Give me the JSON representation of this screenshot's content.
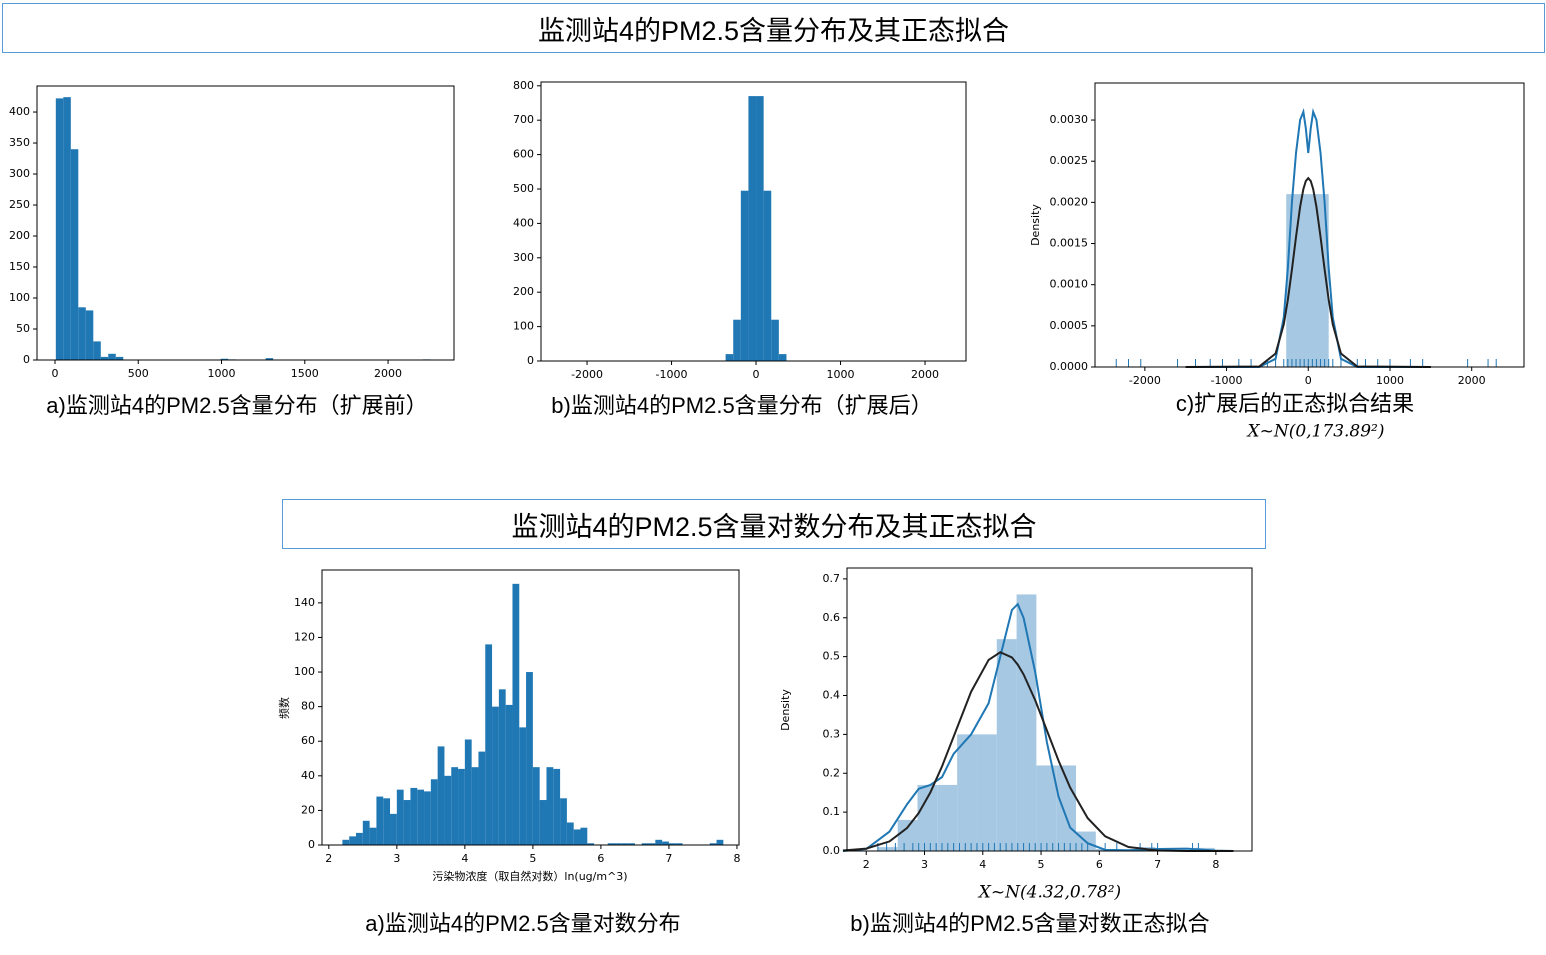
{
  "headings": [
    "监测站4的PM2.5含量分布及其正态拟合",
    "监测站4的PM2.5含量对数分布及其正态拟合"
  ],
  "chart_data": [
    {
      "type": "histogram",
      "caption": "a)监测站4的PM2.5含量分布（扩展前）",
      "color": "#1f77b4",
      "bins": [
        5,
        50,
        95,
        140,
        185,
        230,
        275,
        320,
        365,
        410,
        455,
        500,
        545,
        590,
        635,
        680,
        725,
        770,
        815,
        860,
        905,
        950,
        995,
        1040,
        1085,
        1130,
        1175,
        1220,
        1265,
        1310,
        1355,
        1400,
        1445,
        1490,
        1535,
        1580,
        1625,
        1670,
        1715,
        1760,
        1805,
        1850,
        1895,
        1940,
        1985,
        2030,
        2075,
        2120,
        2165,
        2210,
        2255
      ],
      "counts": [
        422,
        424,
        340,
        85,
        80,
        30,
        5,
        10,
        5,
        0,
        0,
        0,
        0,
        0,
        0,
        0,
        0,
        0,
        0,
        0,
        0,
        0,
        2,
        1,
        0,
        0,
        0,
        0,
        3,
        0,
        0,
        0,
        0,
        0,
        0,
        0,
        0,
        0,
        0,
        0,
        0,
        0,
        0,
        0,
        0,
        0,
        0,
        0,
        0,
        1
      ],
      "xlim": [
        -108,
        2396
      ],
      "xticks": [
        0,
        500,
        1000,
        1500,
        2000
      ],
      "ylim": [
        0,
        442
      ],
      "yticks": [
        0,
        50,
        100,
        150,
        200,
        250,
        300,
        350,
        400
      ]
    },
    {
      "type": "histogram",
      "caption": "b)监测站4的PM2.5含量分布（扩展后）",
      "color": "#1f77b4",
      "bins": [
        -360,
        -270,
        -180,
        -90,
        0,
        90,
        180,
        270,
        360
      ],
      "counts": [
        20,
        120,
        495,
        770,
        770,
        495,
        120,
        20
      ],
      "xlim": [
        -2545,
        2485
      ],
      "xticks": [
        -2000,
        -1000,
        0,
        1000,
        2000
      ],
      "ylim": [
        0,
        811
      ],
      "yticks": [
        0,
        100,
        200,
        300,
        400,
        500,
        600,
        700,
        800
      ]
    },
    {
      "type": "density",
      "caption": "c)扩展后的正态拟合结果",
      "annotation": "X~N(0,173.89²)",
      "ylabel": "Density",
      "color": "#a6c8e3",
      "bins": [
        -270,
        250
      ],
      "counts": [
        0.0021
      ],
      "curves": [
        {
          "color": "#1f77b4",
          "x": [
            -1500,
            -600,
            -400,
            -300,
            -250,
            -200,
            -150,
            -100,
            -60,
            -30,
            0,
            30,
            60,
            100,
            150,
            200,
            250,
            300,
            400,
            600,
            1500
          ],
          "values": [
            0,
            0,
            0.0001,
            0.0006,
            0.0012,
            0.002,
            0.0026,
            0.003,
            0.0031,
            0.0029,
            0.0026,
            0.0029,
            0.0031,
            0.003,
            0.0026,
            0.002,
            0.0012,
            0.0006,
            0.0001,
            0,
            0
          ]
        },
        {
          "color": "#222222",
          "x": [
            -1500,
            -600,
            -400,
            -300,
            -250,
            -200,
            -150,
            -100,
            -60,
            -30,
            0,
            30,
            60,
            100,
            150,
            200,
            250,
            300,
            400,
            600,
            1500
          ],
          "values": [
            0,
            6e-06,
            0.000163,
            0.000518,
            0.000817,
            0.001184,
            0.001581,
            0.001944,
            0.002161,
            0.00226,
            0.002294,
            0.00226,
            0.002161,
            0.001944,
            0.001581,
            0.001184,
            0.000817,
            0.000518,
            0.000163,
            6e-06,
            0
          ]
        }
      ],
      "rug": [
        -2350,
        -2200,
        -2050,
        -1600,
        -1380,
        -1200,
        -1050,
        -850,
        -700,
        -500,
        -400,
        -300,
        -250,
        -200,
        -150,
        -100,
        -50,
        0,
        50,
        100,
        150,
        200,
        250,
        300,
        400,
        600,
        700,
        850,
        1000,
        1250,
        1400,
        1950,
        2200,
        2300
      ],
      "rug_color": "#1f77b4",
      "xlim": [
        -2610,
        2640
      ],
      "xticks": [
        -2000,
        -1000,
        0,
        1000,
        2000
      ],
      "ylim": [
        0,
        0.00345
      ],
      "yticks": [
        {
          "value": 0,
          "label": "0.0000"
        },
        0.0005,
        {
          "value": 0.001,
          "label": "0.0010"
        },
        0.0015,
        {
          "value": 0.002,
          "label": "0.0020"
        },
        0.0025,
        {
          "value": 0.003,
          "label": "0.0030"
        }
      ]
    },
    {
      "type": "histogram",
      "caption": "a)监测站4的PM2.5含量对数分布",
      "xlabel": "污染物浓度（取自然对数）ln(ug/m^3)",
      "ylabel": "频数",
      "color": "#1f77b4",
      "bins": [
        2.2,
        2.3,
        2.4,
        2.5,
        2.6,
        2.7,
        2.8,
        2.9,
        3.0,
        3.1,
        3.2,
        3.3,
        3.4,
        3.5,
        3.6,
        3.7,
        3.8,
        3.9,
        4.0,
        4.1,
        4.2,
        4.3,
        4.4,
        4.5,
        4.6,
        4.7,
        4.8,
        4.9,
        5.0,
        5.1,
        5.2,
        5.3,
        5.4,
        5.5,
        5.6,
        5.7,
        5.8,
        5.9,
        6.0,
        6.1,
        6.2,
        6.3,
        6.4,
        6.5,
        6.6,
        6.7,
        6.8,
        6.9,
        7.0,
        7.1,
        7.2,
        7.3,
        7.4,
        7.5,
        7.6,
        7.7,
        7.8
      ],
      "counts": [
        3,
        5,
        7,
        14,
        10,
        28,
        27,
        18,
        32,
        26,
        33,
        32,
        31,
        38,
        57,
        40,
        45,
        44,
        61,
        45,
        54,
        116,
        80,
        90,
        81,
        151,
        68,
        100,
        45,
        26,
        45,
        44,
        27,
        13,
        9,
        10,
        1,
        0,
        0,
        1,
        1,
        1,
        1,
        0,
        1,
        1,
        3,
        2,
        1,
        1,
        0,
        0,
        0,
        0,
        1,
        3
      ],
      "xlim": [
        1.9,
        8.03
      ],
      "xticks": [
        2,
        3,
        4,
        5,
        6,
        7,
        8
      ],
      "ylim": [
        0,
        159
      ],
      "yticks": [
        0,
        20,
        40,
        60,
        80,
        100,
        120,
        140
      ]
    },
    {
      "type": "density",
      "caption": "b)监测站4的PM2.5含量对数正态拟合",
      "annotation": "X~N(4.32,0.78²)",
      "ylabel": "Density",
      "color": "#a6c8e3",
      "bins": [
        2.2,
        2.54,
        2.88,
        3.22,
        3.56,
        3.9,
        4.24,
        4.58,
        4.92,
        5.26,
        5.6,
        5.94,
        6.28,
        6.62,
        6.96,
        7.3,
        7.64,
        7.98
      ],
      "counts": [
        0.01,
        0.08,
        0.17,
        0.17,
        0.3,
        0.3,
        0.545,
        0.66,
        0.22,
        0.22,
        0.05,
        0.005,
        0.003,
        0.01,
        0.005,
        0.003,
        0.008
      ],
      "curves": [
        {
          "color": "#1f77b4",
          "x": [
            1.6,
            2.0,
            2.4,
            2.7,
            2.9,
            3.1,
            3.3,
            3.5,
            3.8,
            4.1,
            4.3,
            4.5,
            4.6,
            4.7,
            4.9,
            5.1,
            5.3,
            5.5,
            5.8,
            6.1,
            6.5,
            7.0,
            7.5,
            8.0,
            8.3
          ],
          "values": [
            0,
            0.005,
            0.05,
            0.12,
            0.16,
            0.17,
            0.19,
            0.25,
            0.3,
            0.38,
            0.5,
            0.62,
            0.635,
            0.6,
            0.46,
            0.28,
            0.14,
            0.06,
            0.02,
            0.003,
            0.002,
            0.005,
            0.006,
            0.001,
            0
          ]
        },
        {
          "color": "#222222",
          "x": [
            1.6,
            2.0,
            2.4,
            2.7,
            2.9,
            3.1,
            3.3,
            3.5,
            3.8,
            4.1,
            4.3,
            4.5,
            4.6,
            4.7,
            4.9,
            5.1,
            5.3,
            5.5,
            5.8,
            6.1,
            6.5,
            7.0,
            7.5,
            8.0,
            8.3
          ],
          "values": [
            0.00117,
            0.00614,
            0.0247,
            0.0592,
            0.0975,
            0.1505,
            0.2175,
            0.2943,
            0.4097,
            0.4916,
            0.5113,
            0.498,
            0.4796,
            0.4543,
            0.3879,
            0.3102,
            0.2324,
            0.1629,
            0.0846,
            0.0378,
            0.0103,
            0.0014,
            0.0001,
            0,
            0
          ]
        }
      ],
      "rug": [
        2.2,
        2.35,
        2.5,
        2.65,
        2.8,
        2.9,
        3.0,
        3.1,
        3.2,
        3.3,
        3.4,
        3.5,
        3.6,
        3.7,
        3.8,
        3.9,
        4.0,
        4.1,
        4.2,
        4.3,
        4.4,
        4.5,
        4.6,
        4.7,
        4.8,
        4.9,
        5.0,
        5.1,
        5.2,
        5.3,
        5.4,
        5.5,
        5.6,
        5.7,
        5.8,
        6.1,
        6.3,
        6.7,
        6.9,
        7.0,
        7.6,
        7.7
      ],
      "rug_color": "#1f77b4",
      "xlim": [
        1.67,
        8.62
      ],
      "xticks": [
        2,
        3,
        4,
        5,
        6,
        7,
        8
      ],
      "ylim": [
        0,
        0.728
      ],
      "yticks": [
        {
          "value": 0,
          "label": "0.0"
        },
        0.1,
        0.2,
        0.3,
        0.4,
        0.5,
        0.6,
        0.7
      ]
    }
  ]
}
